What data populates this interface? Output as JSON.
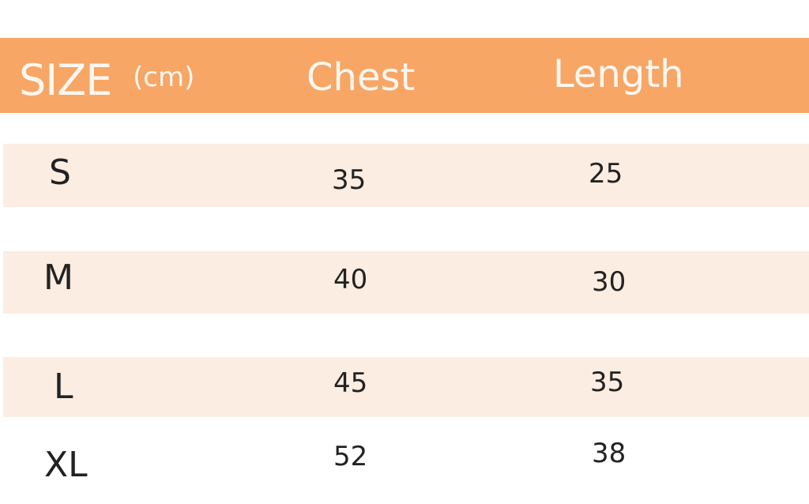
{
  "header": {
    "size": "SIZE",
    "unit": "(cm)",
    "chest": "Chest",
    "length": "Length"
  },
  "colors": {
    "header_bg": "#F7A666",
    "row_band": "#FCEDE2",
    "header_text": "#FBF7F0"
  },
  "rows": [
    {
      "size": "S",
      "chest": "35",
      "length": "25"
    },
    {
      "size": "M",
      "chest": "40",
      "length": "30"
    },
    {
      "size": "L",
      "chest": "45",
      "length": "35"
    },
    {
      "size": "XL",
      "chest": "52",
      "length": "38"
    }
  ]
}
